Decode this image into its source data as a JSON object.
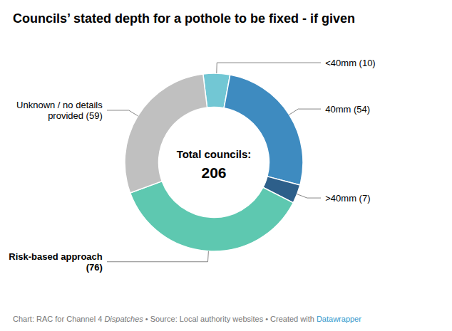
{
  "chart_data": {
    "type": "donut",
    "title": "Councils’ stated depth for a pothole to be fixed - if given",
    "categories": [
      "<40mm (10)",
      "40mm (54)",
      ">40mm (7)",
      "Risk-based approach\n(76)",
      "Unknown / no details\nprovided (59)"
    ],
    "values": [
      10,
      54,
      7,
      76,
      59
    ],
    "colors": [
      "#72c7d4",
      "#3e8bc0",
      "#2d5f8a",
      "#5ec8b0",
      "#c0c0c0"
    ],
    "center_label": "Total councils:",
    "center_value": 206,
    "footnote": [
      {
        "text": "Chart: RAC for Channel 4 ",
        "color": "#777777"
      },
      {
        "text": "Dispatches",
        "color": "#777777",
        "style": "italic"
      },
      {
        "text": " • Source: Local authority websites • Created with ",
        "color": "#777777"
      },
      {
        "text": "Datawrapper",
        "color": "#3399cc"
      }
    ]
  }
}
